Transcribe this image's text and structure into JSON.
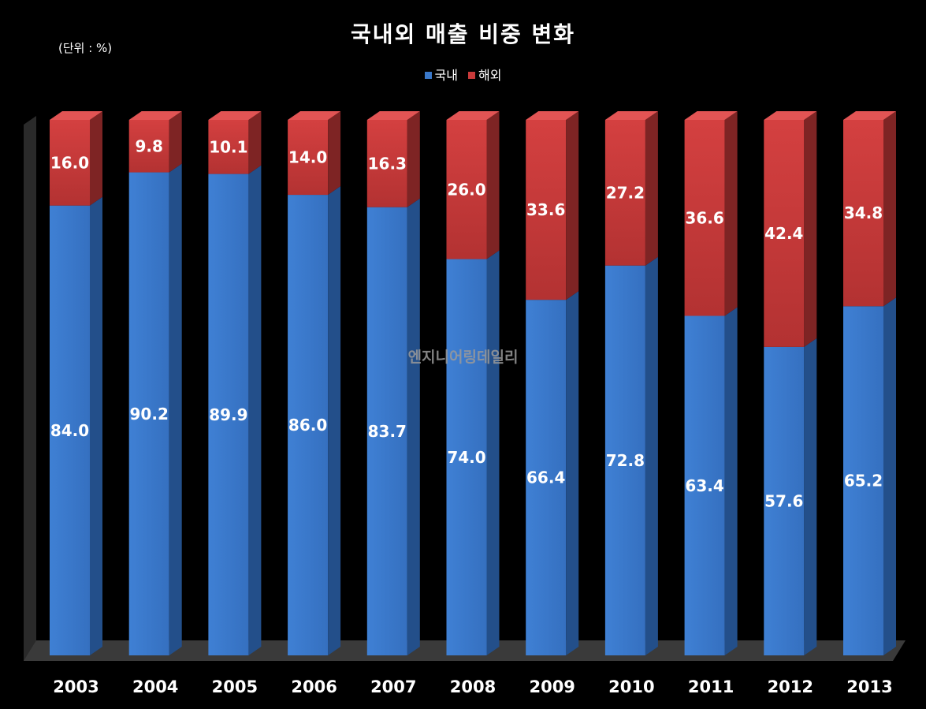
{
  "chart_data": {
    "type": "bar",
    "stacked": true,
    "title": "국내외 매출 비중 변화",
    "unit_label": "(단위 : %)",
    "watermark": "엔지니어링데일리",
    "categories": [
      "2003",
      "2004",
      "2005",
      "2006",
      "2007",
      "2008",
      "2009",
      "2010",
      "2011",
      "2012",
      "2013"
    ],
    "series": [
      {
        "name": "국내",
        "color": "#3a78c9",
        "values": [
          84.0,
          90.2,
          89.9,
          86.0,
          83.7,
          74.0,
          66.4,
          72.8,
          63.4,
          57.6,
          65.2
        ],
        "labels": [
          "84.0",
          "90.2",
          "89.9",
          "86.0",
          "83.7",
          "74.0",
          "66.4",
          "72.8",
          "63.4",
          "57.6",
          "65.2"
        ]
      },
      {
        "name": "해외",
        "color": "#c93a3a",
        "values": [
          16.0,
          9.8,
          10.1,
          14.0,
          16.3,
          26.0,
          33.6,
          27.2,
          36.6,
          42.4,
          34.8
        ],
        "labels": [
          "16.0",
          "9.8",
          "10.1",
          "14.0",
          "16.3",
          "26.0",
          "33.6",
          "27.2",
          "36.6",
          "42.4",
          "34.8"
        ]
      }
    ],
    "ylim": [
      0,
      100
    ],
    "legend_position": "top-center",
    "grid": false,
    "style": "3d"
  }
}
